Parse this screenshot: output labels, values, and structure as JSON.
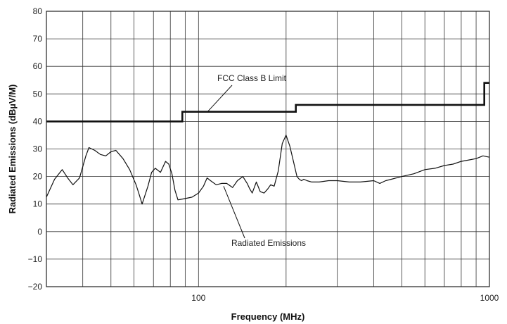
{
  "chart_data": {
    "type": "line",
    "xlabel": "Frequency (MHz)",
    "ylabel": "Radiated Emissions (dBµV/M)",
    "xscale": "log",
    "xlim": [
      30,
      1000
    ],
    "ylim": [
      -20,
      80
    ],
    "grid": true,
    "x_tick_labels": [
      {
        "value": 100,
        "label": "100"
      },
      {
        "value": 1000,
        "label": "1000"
      }
    ],
    "y_ticks": [
      -20,
      -10,
      0,
      10,
      20,
      30,
      40,
      50,
      60,
      70,
      80
    ],
    "y_tick_labels": [
      "−20",
      "−10",
      "0",
      "10",
      "20",
      "30",
      "40",
      "50",
      "60",
      "70",
      "80"
    ],
    "annotations": [
      {
        "text": "FCC Class B Limit",
        "series": "limit"
      },
      {
        "text": "Radiated Emissions",
        "series": "emissions"
      }
    ],
    "series": [
      {
        "id": "limit",
        "style": "step",
        "x": [
          30,
          88,
          88,
          216,
          216,
          960,
          960,
          1000
        ],
        "y": [
          40,
          40,
          43.5,
          43.5,
          46,
          46,
          54,
          54
        ]
      },
      {
        "id": "emissions",
        "style": "line",
        "x": [
          30,
          32,
          34,
          35.5,
          37,
          39,
          41,
          42,
          44,
          46,
          48,
          50,
          52,
          55,
          58,
          61,
          62.5,
          64,
          67,
          69,
          71,
          74,
          77,
          79,
          81,
          83,
          85,
          90,
          95,
          100,
          104,
          107,
          110,
          115,
          120,
          125,
          131,
          136,
          142,
          147,
          150,
          153,
          158,
          163,
          168,
          173,
          177,
          182,
          188,
          194,
          200,
          206,
          212,
          218,
          222,
          226,
          230,
          236,
          245,
          260,
          280,
          300,
          330,
          360,
          400,
          420,
          440,
          460,
          500,
          550,
          600,
          650,
          700,
          750,
          800,
          850,
          900,
          950,
          1000
        ],
        "y": [
          12.5,
          19,
          22.5,
          19.5,
          17,
          19.5,
          27.5,
          30.5,
          29.5,
          28,
          27.5,
          29,
          29.5,
          26.5,
          22.5,
          17,
          13.5,
          10,
          16.5,
          21.5,
          23,
          21.5,
          25.5,
          24.5,
          21,
          15,
          11.5,
          12,
          12.5,
          14,
          16.5,
          19.5,
          18.5,
          17,
          17.5,
          17.5,
          16,
          18.5,
          20,
          17.5,
          15.5,
          14,
          18,
          14.5,
          14,
          15.5,
          17,
          16.5,
          22,
          32,
          35,
          31,
          25.5,
          20,
          19,
          18.5,
          19,
          18.5,
          18,
          18,
          18.5,
          18.5,
          18,
          18,
          18.5,
          17.5,
          18.5,
          19,
          20,
          21,
          22.5,
          23,
          24,
          24.5,
          25.5,
          26,
          26.5,
          27.5,
          27
        ]
      }
    ]
  }
}
